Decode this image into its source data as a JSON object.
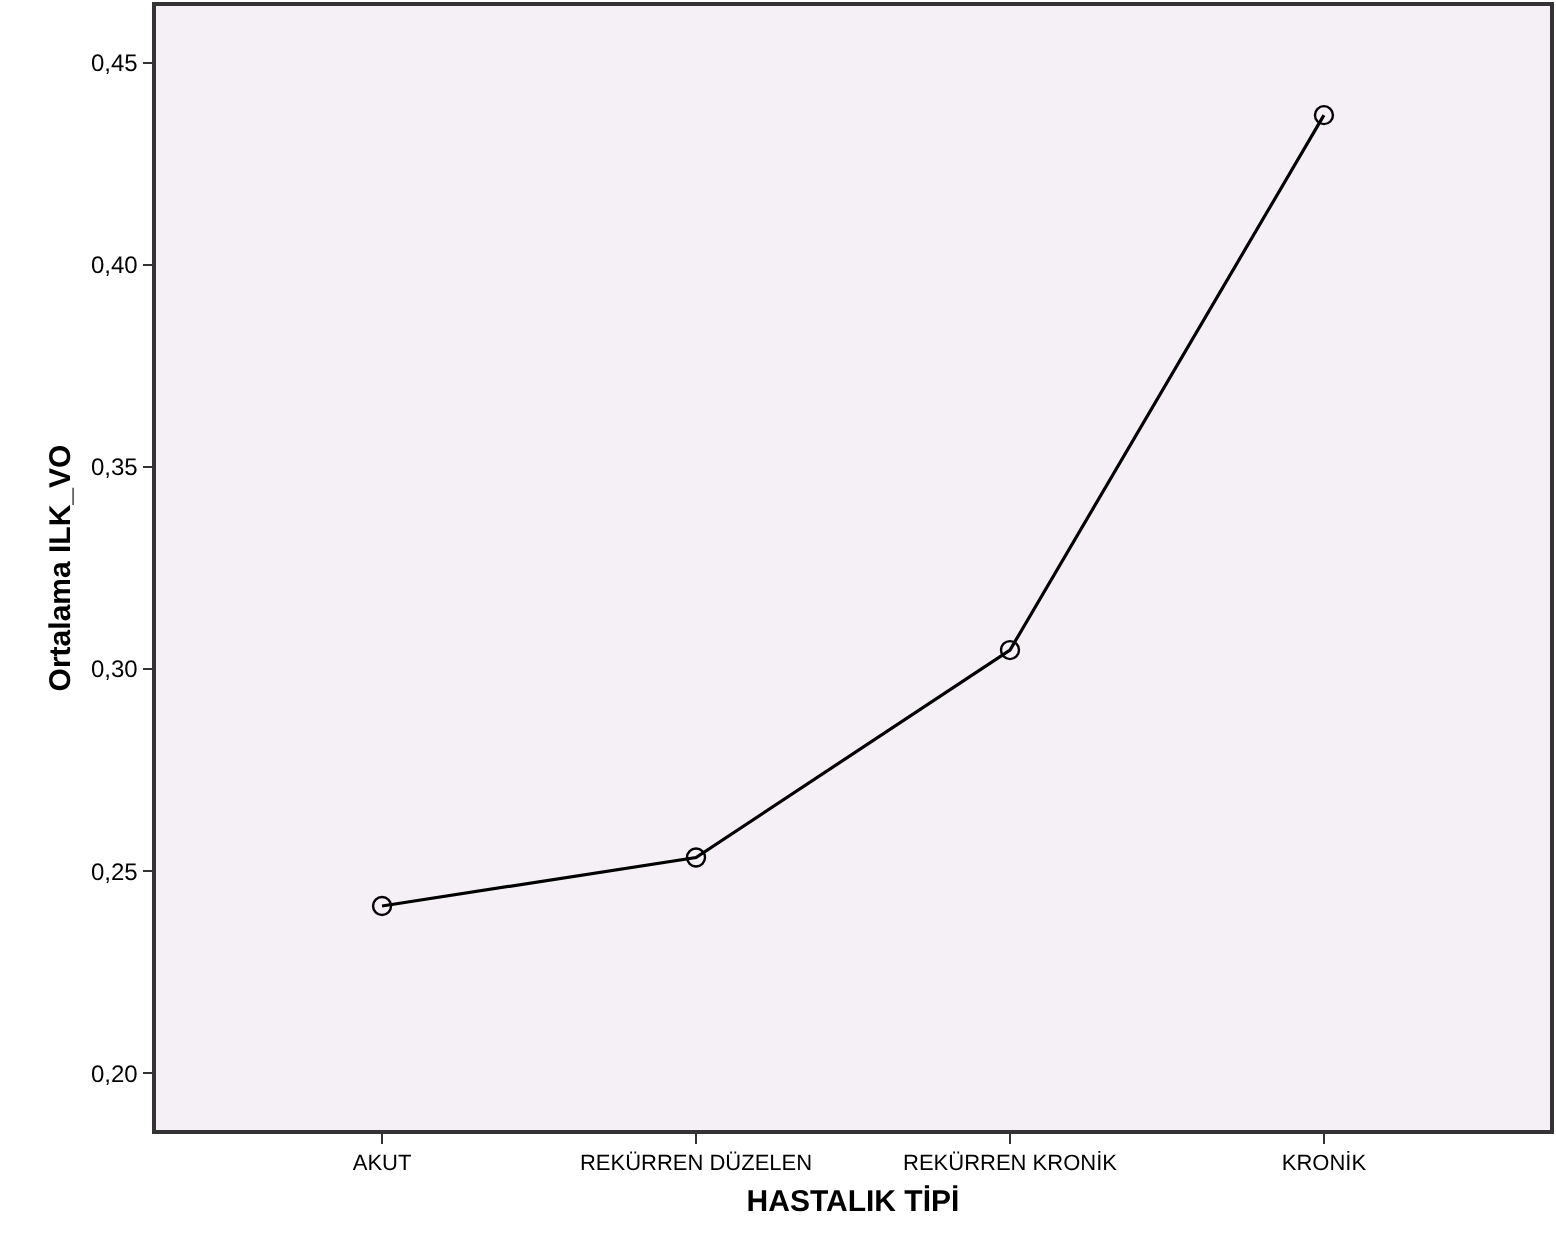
{
  "chart_data": {
    "type": "line",
    "xlabel": "HASTALIK TİPİ",
    "ylabel": "Ortalama ILK_VO",
    "categories": [
      "AKUT",
      "REKÜRREN DÜZELEN",
      "REKÜRREN KRONİK",
      "KRONİK"
    ],
    "series": [
      {
        "color": "#000000",
        "values": [
          0.2414,
          0.2534,
          0.3047,
          0.437
        ]
      }
    ],
    "ylim": [
      0.186,
      0.464
    ],
    "yticks": [
      {
        "value": 0.2,
        "label": "0,20"
      },
      {
        "value": 0.25,
        "label": "0,25"
      },
      {
        "value": 0.3,
        "label": "0,30"
      },
      {
        "value": 0.35,
        "label": "0,35"
      },
      {
        "value": 0.4,
        "label": "0,40"
      },
      {
        "value": 0.45,
        "label": "0,45"
      }
    ],
    "grid": false,
    "marker": "circle",
    "line_style": "solid"
  }
}
